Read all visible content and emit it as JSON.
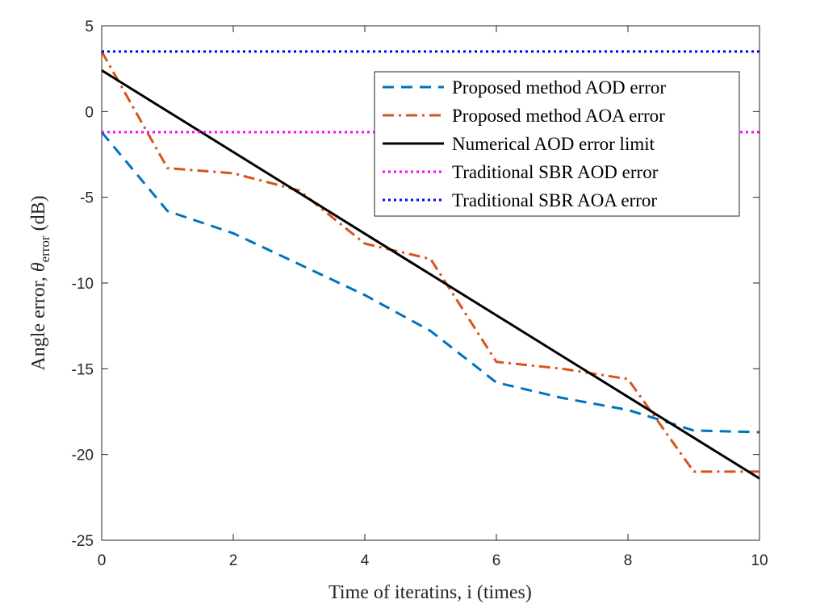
{
  "chart_data": {
    "type": "line",
    "x": [
      0,
      1,
      2,
      3,
      4,
      5,
      6,
      7,
      8,
      9,
      10
    ],
    "xlim": [
      0,
      10
    ],
    "ylim": [
      -25,
      5
    ],
    "xticks": [
      0,
      2,
      4,
      6,
      8,
      10
    ],
    "yticks": [
      5,
      0,
      -5,
      -10,
      -15,
      -20,
      -25
    ],
    "xlabel": "Time of iteratins, i (times)",
    "ylabel": {
      "prefix": "Angle error, ",
      "symbol": "θ",
      "subscript": "error",
      "suffix": " (dB)"
    },
    "legend_location": "top-right",
    "series": [
      {
        "name": "Proposed method AOD error",
        "color": "#0072BD",
        "style": "dashed",
        "values": [
          -1.2,
          -5.8,
          -7.1,
          -8.9,
          -10.7,
          -12.8,
          -15.8,
          -16.7,
          -17.4,
          -18.6,
          -18.7
        ]
      },
      {
        "name": "Proposed method AOA error",
        "color": "#D95319",
        "style": "dashdot",
        "values": [
          3.5,
          -3.3,
          -3.6,
          -4.6,
          -7.7,
          -8.6,
          -14.6,
          -15.0,
          -15.6,
          -21.0,
          -21.0
        ]
      },
      {
        "name": "Numerical AOD error limit",
        "color": "#000000",
        "style": "solid",
        "values": [
          2.4,
          0.02,
          -2.36,
          -4.74,
          -7.12,
          -9.5,
          -11.88,
          -14.26,
          -16.64,
          -19.02,
          -21.4
        ]
      },
      {
        "name": "Traditional SBR AOD error",
        "color": "#FF00FF",
        "style": "dotted",
        "values": [
          -1.2,
          -1.2,
          -1.2,
          -1.2,
          -1.2,
          -1.2,
          -1.2,
          -1.2,
          -1.2,
          -1.2,
          -1.2
        ]
      },
      {
        "name": "Traditional SBR AOA error",
        "color": "#0000FF",
        "style": "dotted",
        "values": [
          3.5,
          3.5,
          3.5,
          3.5,
          3.5,
          3.5,
          3.5,
          3.5,
          3.5,
          3.5,
          3.5
        ]
      }
    ]
  }
}
